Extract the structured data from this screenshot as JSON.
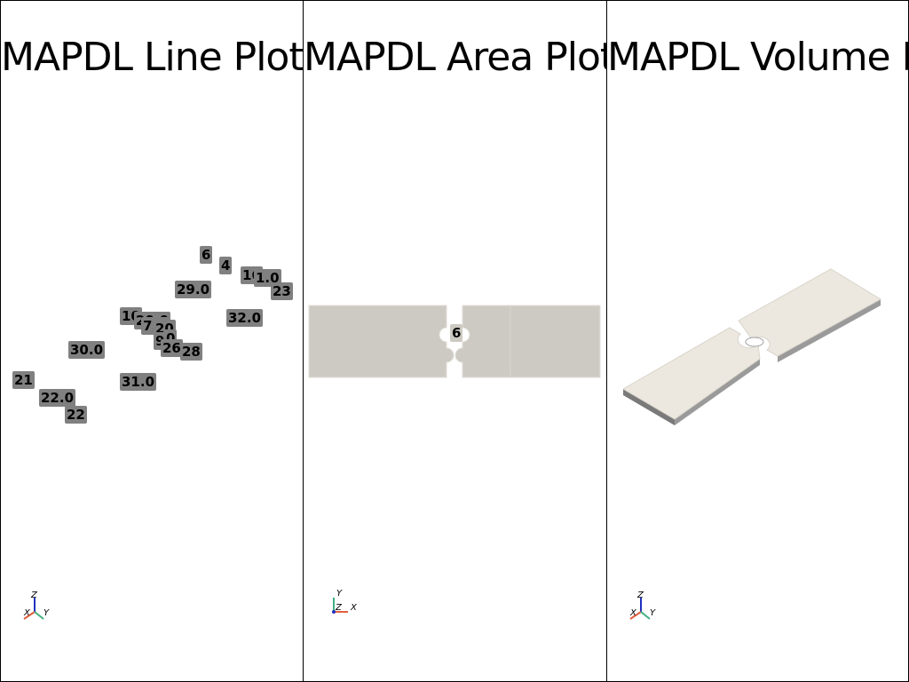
{
  "panels": {
    "line": {
      "title": "MAPDL Line Plot",
      "labels": [
        "6",
        "4",
        "16",
        "1.0",
        "23",
        "29.0",
        "32.0",
        "10",
        "20.0",
        "7.0",
        "20",
        "9",
        "0",
        "26",
        "28",
        "30.0",
        "31.0",
        "21",
        "22.0",
        "22"
      ],
      "axes": {
        "vertical": "Z",
        "left": "X",
        "right": "Y"
      }
    },
    "area": {
      "title": "MAPDL Area Plot",
      "labels": [
        "6"
      ],
      "axes": {
        "vertical": "Y",
        "left": "Z",
        "right": "X"
      }
    },
    "volume": {
      "title": "MAPDL Volume Plot",
      "axes": {
        "vertical": "Z",
        "left": "X",
        "right": "Y"
      }
    }
  },
  "colors": {
    "label_bg": "#808080",
    "area_fill": "#cccac2",
    "volume_top": "#ece8df",
    "volume_side": "#8c8c8c",
    "axis_x": "#e06040",
    "axis_y": "#40b080",
    "axis_z": "#2030c0"
  }
}
